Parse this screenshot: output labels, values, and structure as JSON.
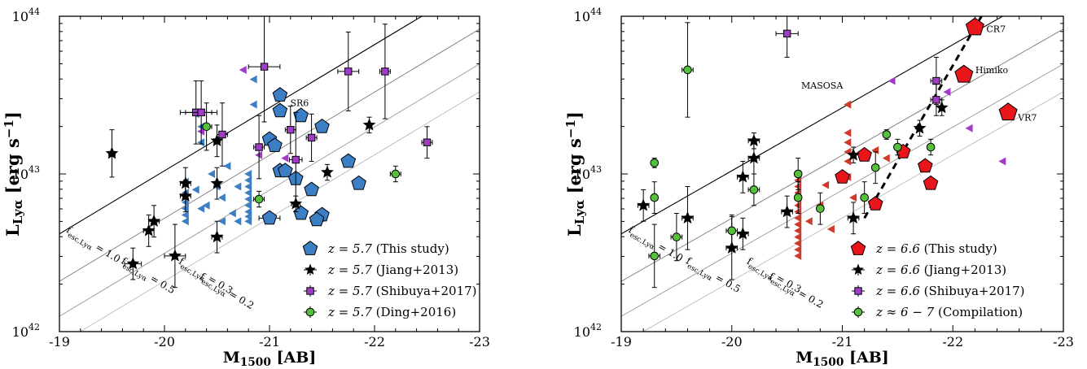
{
  "chart_data": [
    {
      "type": "scatter",
      "xlabel_main": "M",
      "xlabel_sub": "1500",
      "xlabel_tail": " [AB]",
      "ylabel_main": "L",
      "ylabel_sub": "Lyα",
      "ylabel_tail": " [erg s",
      "ylabel_exp": "−1",
      "ylabel_close": "]",
      "xlim": [
        -19,
        -23
      ],
      "ylim_log10": [
        42,
        44
      ],
      "x_ticks": [
        -19,
        -20,
        -21,
        -22,
        -23
      ],
      "x_tick_labels": [
        "-19",
        "-20",
        "-21",
        "-22",
        "-23"
      ],
      "y_ticks_log10": [
        42,
        43,
        44
      ],
      "y_tick_labels": [
        "10",
        "10",
        "10"
      ],
      "y_tick_exps": [
        "42",
        "43",
        "44"
      ],
      "fesc_lines": [
        {
          "f": 1.0,
          "label": "f",
          "sub": "esc,Lyα",
          "eq": " = 1.0",
          "color": "#000000"
        },
        {
          "f": 0.5,
          "label": "f",
          "sub": "esc,Lyα",
          "eq": " = 0.5",
          "color": "#777777"
        },
        {
          "f": 0.3,
          "label": "f",
          "sub": "esc,Lyα",
          "eq": " = 0.3",
          "color": "#999999"
        },
        {
          "f": 0.2,
          "label": "f",
          "sub": "esc,Lyα",
          "eq": " = 0.2",
          "color": "#bbbbbb"
        }
      ],
      "annotations": [
        {
          "text": "SR6",
          "x": -21.15,
          "y": 42.27
        }
      ],
      "legend": {
        "placement": "lower-right",
        "entries": [
          {
            "math": "z = 5.7",
            "text": " (This study)",
            "marker": "pentagon",
            "color": "#3d7fc4"
          },
          {
            "math": "z = 5.7",
            "text": " (Jiang+2013)",
            "marker": "star",
            "color": "#000000"
          },
          {
            "math": "z = 5.7",
            "text": " (Shibuya+2017)",
            "marker": "square",
            "color": "#a03cc8"
          },
          {
            "math": "z = 5.7",
            "text": " (Ding+2016)",
            "marker": "circle",
            "color": "#55c13a"
          }
        ]
      },
      "series": [
        {
          "name": "z = 5.7 (This study)",
          "marker": "pentagon",
          "color": "#3d7fc4",
          "points": [
            [
              -21.1,
              43.5,
              0.03
            ],
            [
              -21.1,
              43.4,
              0.03
            ],
            [
              -21.3,
              43.37,
              0.03
            ],
            [
              -21.5,
              43.3,
              0.03
            ],
            [
              -21.0,
              43.22,
              0.03
            ],
            [
              -21.05,
              43.18,
              0.03
            ],
            [
              -21.75,
              43.08,
              0.03
            ],
            [
              -21.1,
              43.02,
              0.03
            ],
            [
              -21.15,
              43.02,
              0.03
            ],
            [
              -21.25,
              42.97,
              0.03
            ],
            [
              -21.85,
              42.94,
              0.03
            ],
            [
              -21.4,
              42.9,
              0.03
            ],
            [
              -21.0,
              42.72,
              0.1
            ],
            [
              -21.3,
              42.75,
              0.05
            ],
            [
              -21.5,
              42.74,
              0.04
            ],
            [
              -21.45,
              42.71,
              0.06
            ]
          ],
          "limits_color": "#3d7fc4",
          "limits": [
            [
              -20.2,
              42.95
            ],
            [
              -20.2,
              42.88
            ],
            [
              -20.2,
              42.82
            ],
            [
              -20.2,
              42.78
            ],
            [
              -20.2,
              42.74
            ],
            [
              -20.2,
              42.7
            ],
            [
              -20.3,
              43.38
            ],
            [
              -20.35,
              43.3
            ],
            [
              -20.35,
              43.2
            ],
            [
              -20.8,
              43.0
            ],
            [
              -20.8,
              42.96
            ],
            [
              -20.8,
              42.92
            ],
            [
              -20.8,
              42.88
            ],
            [
              -20.8,
              42.84
            ],
            [
              -20.8,
              42.8
            ],
            [
              -20.8,
              42.76
            ],
            [
              -20.8,
              42.73
            ],
            [
              -20.8,
              42.7
            ],
            [
              -20.85,
              43.6
            ],
            [
              -20.85,
              43.44
            ],
            [
              -20.45,
              43.0
            ],
            [
              -20.55,
              42.85
            ],
            [
              -20.4,
              42.8
            ],
            [
              -20.65,
              42.75
            ],
            [
              -20.55,
              42.7
            ],
            [
              -20.35,
              42.78
            ],
            [
              -20.6,
              43.05
            ],
            [
              -20.7,
              42.92
            ],
            [
              -20.5,
              42.92
            ],
            [
              -20.3,
              42.9
            ],
            [
              -20.7,
              42.7
            ]
          ]
        },
        {
          "name": "z = 5.7 (Jiang+2013)",
          "marker": "star",
          "color": "#000000",
          "points": [
            [
              -19.5,
              43.13,
              0.03,
              0.15
            ],
            [
              -19.7,
              42.43,
              0.08,
              0.1
            ],
            [
              -19.85,
              42.64,
              0.05,
              0.1
            ],
            [
              -19.9,
              42.7,
              0.05,
              0.1
            ],
            [
              -20.1,
              42.48,
              0.1,
              0.2
            ],
            [
              -20.2,
              42.94,
              0.05,
              0.1
            ],
            [
              -20.2,
              42.86,
              0.05,
              0.1
            ],
            [
              -20.5,
              42.6,
              0.05,
              0.1
            ],
            [
              -20.5,
              43.21,
              0.03,
              0.1
            ],
            [
              -20.5,
              42.94,
              0.02,
              0.1
            ],
            [
              -21.95,
              43.31,
              0.02,
              0.05
            ],
            [
              -21.55,
              43.01,
              0.02,
              0.05
            ],
            [
              -21.25,
              42.81,
              0.04,
              0.05
            ]
          ]
        },
        {
          "name": "z = 5.7 (Shibuya+2017)",
          "marker": "square",
          "color": "#a03cc8",
          "points": [
            [
              -20.95,
              43.68,
              0.15,
              0.35
            ],
            [
              -21.75,
              43.65,
              0.1,
              0.25
            ],
            [
              -22.1,
              43.65,
              0.05,
              0.3
            ],
            [
              -20.3,
              43.39,
              0.15,
              0.2
            ],
            [
              -20.35,
              43.39,
              0.15,
              0.2
            ],
            [
              -21.2,
              43.28,
              0.05,
              0.15
            ],
            [
              -20.55,
              43.25,
              0.05,
              0.2
            ],
            [
              -21.4,
              43.23,
              0.05,
              0.15
            ],
            [
              -20.9,
              43.17,
              0.05,
              0.2
            ],
            [
              -21.25,
              43.09,
              0.06,
              0.3
            ],
            [
              -22.5,
              43.2,
              0.05,
              0.1
            ]
          ],
          "limits_color": "#a03cc8",
          "limits": [
            [
              -20.75,
              43.66
            ],
            [
              -20.35,
              43.27
            ],
            [
              -20.9,
              43.12
            ],
            [
              -21.15,
              43.1
            ]
          ]
        },
        {
          "name": "z = 5.7 (Ding+2016)",
          "marker": "circle",
          "color": "#55c13a",
          "points": [
            [
              -20.4,
              43.3,
              0.05,
              0.15
            ],
            [
              -20.9,
              42.84,
              0.05,
              0.05
            ],
            [
              -22.2,
              43.0,
              0.05,
              0.05
            ]
          ]
        }
      ]
    },
    {
      "type": "scatter",
      "xlabel_main": "M",
      "xlabel_sub": "1500",
      "xlabel_tail": " [AB]",
      "ylabel_main": "L",
      "ylabel_sub": "Lyα",
      "ylabel_tail": " [erg s",
      "ylabel_exp": "−1",
      "ylabel_close": "]",
      "xlim": [
        -19,
        -23
      ],
      "ylim_log10": [
        42,
        44
      ],
      "x_ticks": [
        -19,
        -20,
        -21,
        -22,
        -23
      ],
      "x_tick_labels": [
        "-19",
        "-20",
        "-21",
        "-22",
        "-23"
      ],
      "y_ticks_log10": [
        42,
        43,
        44
      ],
      "y_tick_labels": [
        "10",
        "10",
        "10"
      ],
      "y_tick_exps": [
        "42",
        "43",
        "44"
      ],
      "fesc_lines": [
        {
          "f": 1.0,
          "label": "f",
          "sub": "esc,Lyα",
          "eq": " = 1.0",
          "color": "#000000"
        },
        {
          "f": 0.5,
          "label": "f",
          "sub": "esc,Lyα",
          "eq": " = 0.5",
          "color": "#777777"
        },
        {
          "f": 0.3,
          "label": "f",
          "sub": "esc,Lyα",
          "eq": " = 0.3",
          "color": "#999999"
        },
        {
          "f": 0.2,
          "label": "f",
          "sub": "esc,Lyα",
          "eq": " = 0.2",
          "color": "#bbbbbb"
        }
      ],
      "annotation_labels": [
        "CR7",
        "Himiko",
        "MASOSA",
        "VR7"
      ],
      "legend": {
        "placement": "lower-right",
        "entries": [
          {
            "math": "z = 6.6",
            "text": " (This study)",
            "marker": "pentagon",
            "color": "#e8161b"
          },
          {
            "math": "z = 6.6",
            "text": " (Jiang+2013)",
            "marker": "star",
            "color": "#000000"
          },
          {
            "math": "z = 6.6",
            "text": " (Shibuya+2017)",
            "marker": "square",
            "color": "#a03cc8"
          },
          {
            "math": "z ≈ 6 − 7",
            "text": " (Compilation)",
            "marker": "circle",
            "color": "#55c13a"
          }
        ]
      },
      "series": [
        {
          "name": "z = 6.6 (This study)",
          "marker": "pentagon",
          "color": "#e8161b",
          "points": [
            [
              -22.2,
              43.93,
              0.03
            ],
            [
              -22.1,
              43.63,
              0.03
            ],
            [
              -22.5,
              43.39,
              0.03
            ],
            [
              -21.55,
              43.14,
              0.03
            ],
            [
              -21.2,
              43.12,
              0.03
            ],
            [
              -21.75,
              43.05,
              0.03
            ],
            [
              -21.0,
              42.98,
              0.03
            ],
            [
              -21.8,
              42.94,
              0.03
            ],
            [
              -21.3,
              42.81,
              0.03
            ]
          ],
          "limits_color": "#d03a2c",
          "limits": [
            [
              -21.05,
              43.44
            ],
            [
              -20.6,
              43.0
            ],
            [
              -20.6,
              42.96
            ],
            [
              -20.6,
              42.92
            ],
            [
              -20.6,
              42.88
            ],
            [
              -20.6,
              42.84
            ],
            [
              -20.6,
              42.8
            ],
            [
              -20.6,
              42.76
            ],
            [
              -20.6,
              42.72
            ],
            [
              -20.6,
              42.68
            ],
            [
              -20.6,
              42.64
            ],
            [
              -20.6,
              42.6
            ],
            [
              -20.6,
              42.56
            ],
            [
              -20.6,
              42.52
            ],
            [
              -20.6,
              42.48
            ],
            [
              -21.05,
              43.26
            ],
            [
              -21.05,
              43.2
            ],
            [
              -21.05,
              43.14
            ],
            [
              -21.05,
              43.08
            ],
            [
              -21.05,
              42.98
            ],
            [
              -21.3,
              43.15
            ],
            [
              -21.4,
              43.1
            ],
            [
              -20.85,
              42.93
            ],
            [
              -20.8,
              42.8
            ],
            [
              -20.7,
              42.7
            ],
            [
              -21.1,
              42.85
            ],
            [
              -20.9,
              42.65
            ]
          ]
        },
        {
          "name": "z = 6.6 (Jiang+2013)",
          "marker": "star",
          "color": "#000000",
          "points": [
            [
              -19.2,
              42.8,
              0.05,
              0.1
            ],
            [
              -19.6,
              42.72,
              0.05,
              0.2
            ],
            [
              -20.0,
              42.53,
              0.05,
              0.2
            ],
            [
              -20.1,
              42.62,
              0.05,
              0.1
            ],
            [
              -20.1,
              42.98,
              0.05,
              0.1
            ],
            [
              -20.2,
              43.21,
              0.05,
              0.05
            ],
            [
              -20.2,
              43.1,
              0.05,
              0.1
            ],
            [
              -20.5,
              42.76,
              0.05,
              0.1
            ],
            [
              -21.1,
              42.72,
              0.05,
              0.1
            ],
            [
              -21.1,
              43.12,
              0.02,
              0.05
            ],
            [
              -21.7,
              43.29,
              0.02,
              0.05
            ],
            [
              -21.9,
              43.42,
              0.02,
              0.05
            ]
          ]
        },
        {
          "name": "z = 6.6 (Shibuya+2017)",
          "marker": "square",
          "color": "#a03cc8",
          "points": [
            [
              -20.5,
              43.89,
              0.1,
              0.15
            ],
            [
              -21.85,
              43.59,
              0.05,
              0.15
            ],
            [
              -21.85,
              43.47,
              0.05,
              0.1
            ]
          ],
          "limits_color": "#a03cc8",
          "limits": [
            [
              -21.45,
              43.59
            ],
            [
              -21.95,
              43.52
            ],
            [
              -22.15,
              43.29
            ],
            [
              -22.45,
              43.08
            ]
          ]
        },
        {
          "name": "z ≈ 6 − 7 (Compilation)",
          "marker": "circle",
          "color": "#55c13a",
          "points": [
            [
              -19.6,
              43.66,
              0.05,
              0.3
            ],
            [
              -19.3,
              43.07,
              0.03,
              0.03
            ],
            [
              -19.3,
              42.85,
              0.03,
              0.1
            ],
            [
              -19.5,
              42.6,
              0.05,
              0.15
            ],
            [
              -19.3,
              42.48,
              0.05,
              0.2
            ],
            [
              -20.0,
              42.64,
              0.05,
              0.1
            ],
            [
              -20.2,
              42.9,
              0.05,
              0.1
            ],
            [
              -20.6,
              43.0,
              0.03,
              0.1
            ],
            [
              -20.6,
              42.85,
              0.03,
              0.1
            ],
            [
              -20.8,
              42.78,
              0.03,
              0.1
            ],
            [
              -21.2,
              42.85,
              0.03,
              0.1
            ],
            [
              -21.3,
              43.04,
              0.03,
              0.1
            ],
            [
              -21.4,
              43.25,
              0.03,
              0.03
            ],
            [
              -21.5,
              43.17,
              0.03,
              0.05
            ],
            [
              -21.8,
              43.17,
              0.03,
              0.05
            ]
          ]
        }
      ],
      "trend_line": {
        "x": [
          -21.2,
          -22.3
        ],
        "y": [
          42.72,
          44.05
        ],
        "style": "dashed",
        "color": "#000000"
      }
    }
  ]
}
